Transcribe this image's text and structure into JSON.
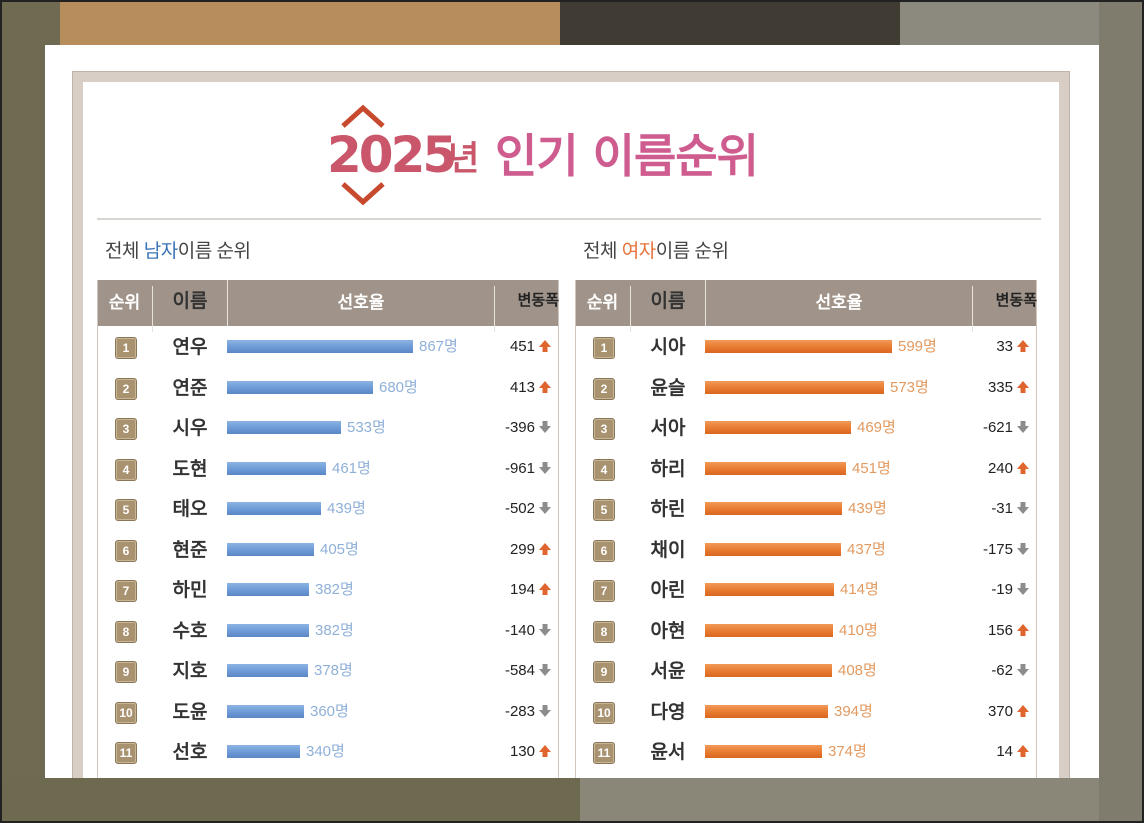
{
  "title": {
    "year": "2025",
    "unit": "년",
    "text": "인기 이름순위"
  },
  "colors": {
    "male_bar": "#6d9ad6",
    "female_bar": "#e77a30",
    "up_arrow": "#e0642d",
    "down_arrow": "#8c8c8c",
    "header": "#a0948a"
  },
  "male": {
    "heading_prefix": "전체 ",
    "heading_accent": "남자",
    "heading_suffix": "이름 순위",
    "columns": [
      "순위",
      "이름",
      "선호율",
      "변동폭"
    ],
    "rows": [
      {
        "rank": "1",
        "name": "연우",
        "count": "867명",
        "value": 867,
        "change": "451",
        "dir": "up"
      },
      {
        "rank": "2",
        "name": "연준",
        "count": "680명",
        "value": 680,
        "change": "413",
        "dir": "up"
      },
      {
        "rank": "3",
        "name": "시우",
        "count": "533명",
        "value": 533,
        "change": "-396",
        "dir": "down"
      },
      {
        "rank": "4",
        "name": "도현",
        "count": "461명",
        "value": 461,
        "change": "-961",
        "dir": "down"
      },
      {
        "rank": "5",
        "name": "태오",
        "count": "439명",
        "value": 439,
        "change": "-502",
        "dir": "down"
      },
      {
        "rank": "6",
        "name": "현준",
        "count": "405명",
        "value": 405,
        "change": "299",
        "dir": "up"
      },
      {
        "rank": "7",
        "name": "하민",
        "count": "382명",
        "value": 382,
        "change": "194",
        "dir": "up"
      },
      {
        "rank": "8",
        "name": "수호",
        "count": "382명",
        "value": 382,
        "change": "-140",
        "dir": "down"
      },
      {
        "rank": "9",
        "name": "지호",
        "count": "378명",
        "value": 378,
        "change": "-584",
        "dir": "down"
      },
      {
        "rank": "10",
        "name": "도윤",
        "count": "360명",
        "value": 360,
        "change": "-283",
        "dir": "down"
      },
      {
        "rank": "11",
        "name": "선호",
        "count": "340명",
        "value": 340,
        "change": "130",
        "dir": "up"
      }
    ]
  },
  "female": {
    "heading_prefix": "전체 ",
    "heading_accent": "여자",
    "heading_suffix": "이름 순위",
    "columns": [
      "순위",
      "이름",
      "선호율",
      "변동폭"
    ],
    "rows": [
      {
        "rank": "1",
        "name": "시아",
        "count": "599명",
        "value": 599,
        "change": "33",
        "dir": "up"
      },
      {
        "rank": "2",
        "name": "윤슬",
        "count": "573명",
        "value": 573,
        "change": "335",
        "dir": "up"
      },
      {
        "rank": "3",
        "name": "서아",
        "count": "469명",
        "value": 469,
        "change": "-621",
        "dir": "down"
      },
      {
        "rank": "4",
        "name": "하리",
        "count": "451명",
        "value": 451,
        "change": "240",
        "dir": "up"
      },
      {
        "rank": "5",
        "name": "하린",
        "count": "439명",
        "value": 439,
        "change": "-31",
        "dir": "down"
      },
      {
        "rank": "6",
        "name": "채이",
        "count": "437명",
        "value": 437,
        "change": "-175",
        "dir": "down"
      },
      {
        "rank": "7",
        "name": "아린",
        "count": "414명",
        "value": 414,
        "change": "-19",
        "dir": "down"
      },
      {
        "rank": "8",
        "name": "아현",
        "count": "410명",
        "value": 410,
        "change": "156",
        "dir": "up"
      },
      {
        "rank": "9",
        "name": "서윤",
        "count": "408명",
        "value": 408,
        "change": "-62",
        "dir": "down"
      },
      {
        "rank": "10",
        "name": "다영",
        "count": "394명",
        "value": 394,
        "change": "370",
        "dir": "up"
      },
      {
        "rank": "11",
        "name": "윤서",
        "count": "374명",
        "value": 374,
        "change": "14",
        "dir": "up"
      }
    ]
  }
}
